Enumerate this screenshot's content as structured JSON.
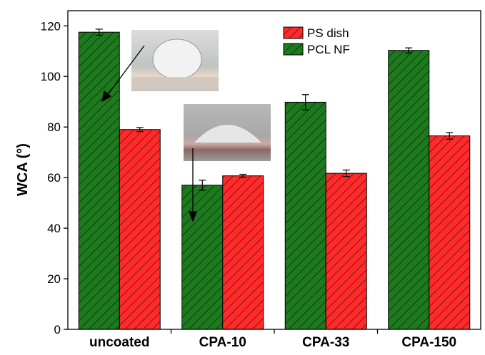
{
  "chart_data": {
    "type": "bar",
    "ylabel": "WCA (°)",
    "categories": [
      "uncoated",
      "CPA-10",
      "CPA-33",
      "CPA-150"
    ],
    "series": [
      {
        "name": "PCL NF",
        "color": "#1e7a1e",
        "values": [
          117.5,
          57,
          89.8,
          110.3
        ],
        "errors": [
          1.2,
          2,
          3,
          1
        ]
      },
      {
        "name": "PS dish",
        "color": "#ff2a2a",
        "values": [
          79,
          60.7,
          61.7,
          76.5
        ],
        "errors": [
          0.8,
          0.6,
          1.3,
          1.3
        ]
      }
    ],
    "ylim": [
      0,
      126
    ],
    "yticks": [
      0,
      20,
      40,
      60,
      80,
      100,
      120
    ],
    "legend": "upper right"
  }
}
